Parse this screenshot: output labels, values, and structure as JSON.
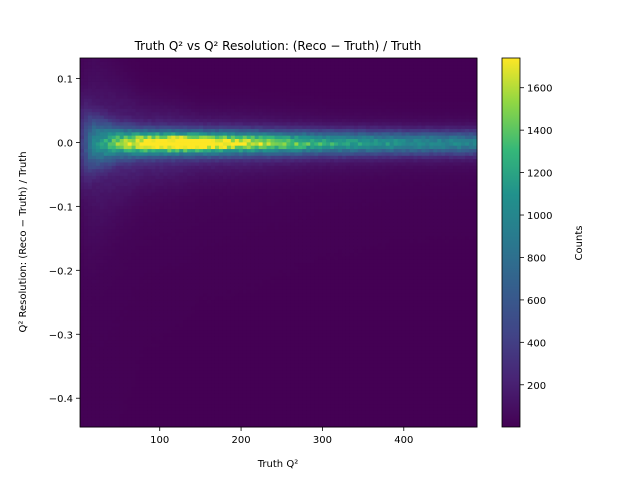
{
  "chart_data": {
    "type": "heatmap",
    "title": "Truth Q² vs Q² Resolution: (Reco − Truth) / Truth",
    "xlabel": "Truth Q²",
    "ylabel": "Q² Resolution: (Reco − Truth) / Truth",
    "xlim": [
      2,
      490
    ],
    "ylim": [
      -0.445,
      0.132
    ],
    "x_ticks": [
      100,
      200,
      300,
      400
    ],
    "x_tick_labels": [
      "100",
      "200",
      "300",
      "400"
    ],
    "y_ticks": [
      0.1,
      0.0,
      -0.1,
      -0.2,
      -0.3,
      -0.4
    ],
    "y_tick_labels": [
      "0.1",
      "0.0",
      "−0.1",
      "−0.2",
      "−0.3",
      "−0.4"
    ],
    "colormap": "viridis",
    "colorbar": {
      "label": "Counts",
      "range": [
        1,
        1740
      ],
      "ticks": [
        200,
        400,
        600,
        800,
        1000,
        1200,
        1400,
        1600
      ],
      "tick_labels": [
        "200",
        "400",
        "600",
        "800",
        "1000",
        "1200",
        "1400",
        "1600"
      ]
    },
    "peak_profile": {
      "x": [
        5,
        20,
        50,
        80,
        120,
        150,
        200,
        250,
        300,
        350,
        400,
        450,
        490
      ],
      "peak_counts": [
        350,
        900,
        1250,
        1550,
        1700,
        1650,
        1450,
        1250,
        1080,
        980,
        900,
        850,
        820
      ],
      "core_width": [
        0.04,
        0.025,
        0.016,
        0.013,
        0.012,
        0.012,
        0.012,
        0.012,
        0.012,
        0.012,
        0.012,
        0.012,
        0.012
      ],
      "halo_width": [
        0.12,
        0.09,
        0.06,
        0.04,
        0.035,
        0.03,
        0.03,
        0.028,
        0.026,
        0.025,
        0.024,
        0.024,
        0.024
      ]
    }
  }
}
